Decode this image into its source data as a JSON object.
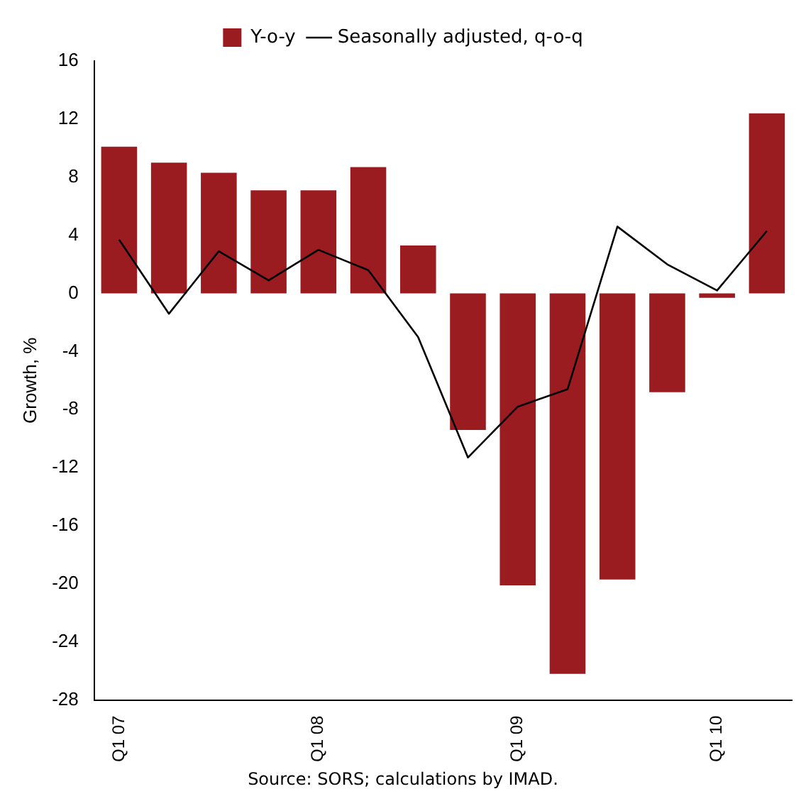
{
  "chart_data": {
    "type": "bar",
    "ylabel": "Growth, %",
    "categories": [
      "Q1 07",
      null,
      null,
      null,
      "Q1 08",
      null,
      null,
      null,
      "Q1 09",
      null,
      null,
      null,
      "Q1 10",
      null
    ],
    "series": [
      {
        "name": "Y-o-y",
        "color": "#9b1c20",
        "values": [
          10.1,
          9.0,
          8.3,
          7.1,
          7.1,
          8.7,
          3.3,
          -9.4,
          -20.1,
          -26.2,
          -19.7,
          -6.8,
          -0.3,
          12.4
        ]
      },
      {
        "name": "Seasonally adjusted, q-o-q",
        "type": "line",
        "color": "#000000",
        "values": [
          3.7,
          -1.4,
          2.9,
          0.9,
          3.0,
          1.6,
          -3.0,
          -11.3,
          -7.8,
          -6.6,
          4.6,
          2.0,
          0.2,
          4.3
        ]
      }
    ],
    "ylim": [
      -28,
      16
    ],
    "yticks": [
      16,
      12,
      8,
      4,
      0,
      -4,
      -8,
      -12,
      -16,
      -20,
      -24,
      -28
    ],
    "grid": false,
    "legend": "top",
    "marker": "none",
    "annotations": [
      "Source: SORS; calculations by IMAD."
    ]
  }
}
